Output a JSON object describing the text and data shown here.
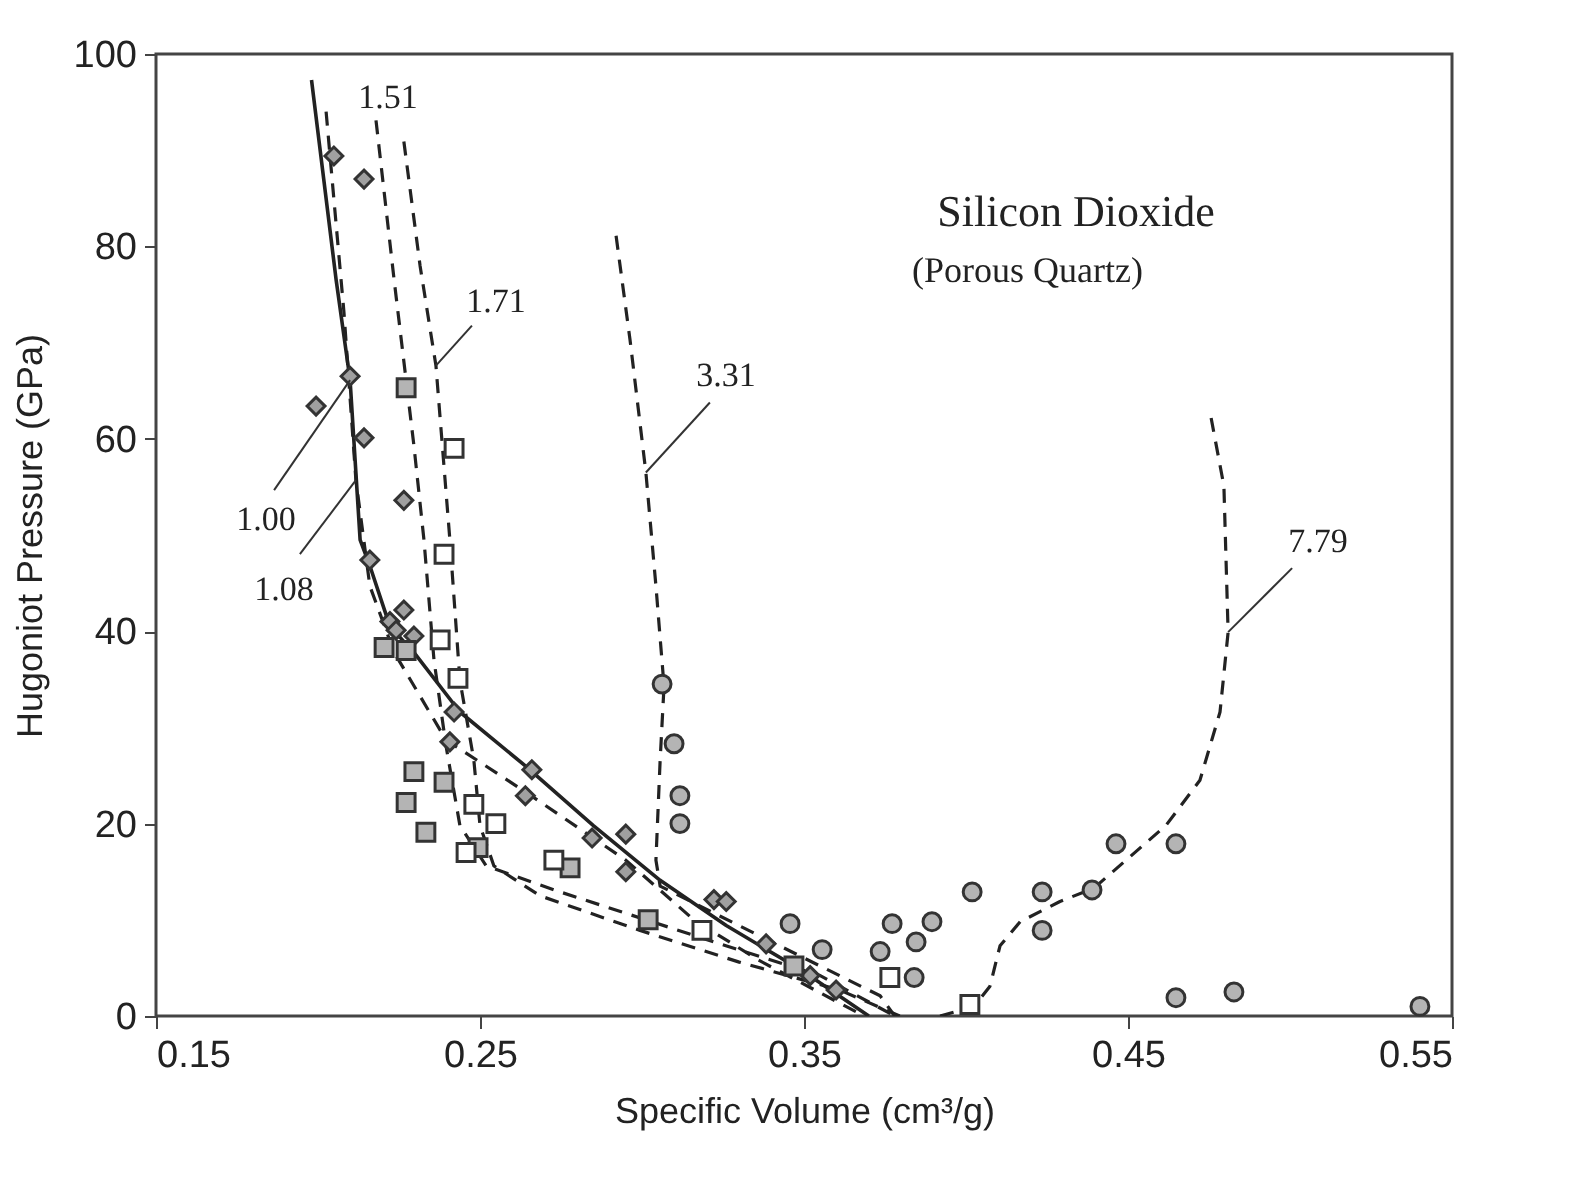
{
  "chart_data": {
    "type": "line",
    "title": "Silicon Dioxide",
    "subtitle": "(Porous Quartz)",
    "xlabel": "Specific Volume  (cm³/g)",
    "ylabel": "Hugoniot Pressure  (GPa)",
    "xlim": [
      0.15,
      0.55
    ],
    "xticks": [
      0.15,
      0.25,
      0.35,
      0.45,
      0.55
    ],
    "ylim": [
      0,
      100
    ],
    "yticks": [
      0,
      20,
      40,
      60,
      80,
      100
    ],
    "grid": false,
    "series": [
      {
        "name": "1.00",
        "line_style": "solid",
        "marker": "none",
        "color": "#222222",
        "x": [
          0.198,
          0.2056,
          0.2099,
          0.213,
          0.216,
          0.2222,
          0.2296,
          0.2438,
          0.264,
          0.285,
          0.3056,
          0.326,
          0.349,
          0.37
        ],
        "values": [
          97.3,
          76.5,
          66.1,
          49.5,
          46.8,
          40.5,
          37.8,
          31.6,
          26.0,
          19.8,
          14.1,
          9.4,
          4.8,
          0
        ]
      },
      {
        "name": "1.08",
        "line_style": "dashed",
        "marker": "none",
        "color": "#222222",
        "x": [
          0.2025,
          0.208,
          0.2117,
          0.216,
          0.2235,
          0.2395,
          0.264,
          0.295,
          0.316,
          0.336,
          0.3685
        ],
        "values": [
          94.0,
          73.2,
          55.7,
          44.7,
          37.8,
          28.7,
          23.3,
          16.2,
          10.0,
          5.8,
          0
        ]
      },
      {
        "name": "1.51",
        "line_style": "dashed",
        "marker": "none",
        "color": "#222222",
        "x": [
          0.2179,
          0.2235,
          0.2296,
          0.2327,
          0.2358,
          0.2395,
          0.2438,
          0.2519,
          0.2747,
          0.3012,
          0.3259,
          0.355,
          0.378
        ],
        "values": [
          93.1,
          76.5,
          59.3,
          49.5,
          37.0,
          28.1,
          19.8,
          15.6,
          12.9,
          10.0,
          7.3,
          4.2,
          0
        ]
      },
      {
        "name": "1.71",
        "line_style": "dashed",
        "marker": "none",
        "color": "#222222",
        "x": [
          0.2265,
          0.2315,
          0.2364,
          0.2407,
          0.2438,
          0.2481,
          0.25,
          0.2543,
          0.2685,
          0.2994,
          0.33,
          0.361,
          0.3796
        ],
        "values": [
          90.9,
          78.0,
          67.6,
          49.5,
          34.9,
          26.6,
          19.8,
          15.6,
          12.5,
          8.9,
          5.6,
          2.7,
          0
        ]
      },
      {
        "name": "3.31",
        "line_style": "dashed",
        "marker": "none",
        "color": "#222222",
        "x": [
          0.292,
          0.2963,
          0.3012,
          0.3043,
          0.3068,
          0.3056,
          0.3043,
          0.3056,
          0.324,
          0.349,
          0.3735,
          0.378
        ],
        "values": [
          81.1,
          70.3,
          56.5,
          44.7,
          34.3,
          26.6,
          16.2,
          13.5,
          10.4,
          6.2,
          2.1,
          0
        ]
      },
      {
        "name": "7.79",
        "line_style": "dashed",
        "marker": "none",
        "color": "#222222",
        "x": [
          0.392,
          0.4025,
          0.4074,
          0.4105,
          0.4167,
          0.429,
          0.4395,
          0.4494,
          0.4617,
          0.4722,
          0.4784,
          0.4809,
          0.4796,
          0.4753
        ],
        "values": [
          0,
          1.0,
          3.1,
          7.3,
          9.8,
          11.9,
          13.3,
          16.2,
          19.8,
          24.5,
          31.6,
          39.9,
          55.1,
          62.8
        ]
      },
      {
        "type": "scatter",
        "marker": "diamond",
        "color": "#a0a0a0",
        "x": [
          0.2049,
          0.2142,
          0.2099,
          0.1994,
          0.2142,
          0.2265,
          0.216,
          0.2265,
          0.2222,
          0.2241,
          0.2296,
          0.242,
          0.2407,
          0.266,
          0.264,
          0.2846,
          0.295,
          0.295,
          0.3222,
          0.326,
          0.3383,
          0.3519,
          0.3599
        ],
        "values": [
          89.4,
          87.0,
          66.5,
          63.4,
          60.1,
          53.6,
          47.4,
          42.2,
          41.0,
          40.1,
          39.5,
          31.6,
          28.5,
          25.6,
          22.9,
          18.5,
          18.9,
          15.0,
          12.1,
          11.9,
          7.5,
          4.2,
          2.7
        ]
      },
      {
        "type": "scatter",
        "marker": "square",
        "color": "#b4b4b4",
        "x": [
          0.2272,
          0.2204,
          0.2272,
          0.2296,
          0.2389,
          0.2272,
          0.2333,
          0.2494,
          0.2778,
          0.3019,
          0.3469
        ],
        "values": [
          65.3,
          38.3,
          38.0,
          25.4,
          24.3,
          22.2,
          19.1,
          17.5,
          15.4,
          10.0,
          5.2
        ]
      },
      {
        "type": "scatter",
        "marker": "square",
        "color": "#ffffff",
        "x": [
          0.242,
          0.2389,
          0.2377,
          0.2432,
          0.2481,
          0.2549,
          0.2457,
          0.2728,
          0.3185,
          0.3765,
          0.4012
        ],
        "values": [
          59.0,
          48.0,
          39.1,
          35.1,
          22.0,
          20.0,
          17.0,
          16.2,
          8.9,
          4.0,
          1.2
        ]
      },
      {
        "type": "scatter",
        "marker": "circle",
        "color": "#b4b4b4",
        "x": [
          0.3062,
          0.3099,
          0.3117,
          0.3117,
          0.3556,
          0.3457,
          0.3735,
          0.3772,
          0.3846,
          0.3895,
          0.384,
          0.4019,
          0.4235,
          0.4235,
          0.4389,
          0.4463,
          0.4648,
          0.4648,
          0.4827,
          0.5401
        ],
        "values": [
          34.5,
          28.3,
          22.9,
          20.0,
          6.9,
          9.6,
          6.7,
          9.6,
          7.7,
          9.8,
          4.0,
          12.9,
          12.9,
          8.9,
          13.1,
          17.9,
          17.9,
          1.9,
          2.5,
          1.0
        ]
      }
    ]
  }
}
